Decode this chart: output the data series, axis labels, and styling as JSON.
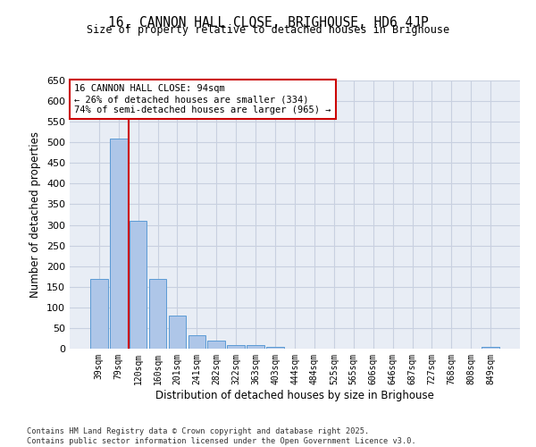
{
  "title_line1": "16, CANNON HALL CLOSE, BRIGHOUSE, HD6 4JP",
  "title_line2": "Size of property relative to detached houses in Brighouse",
  "xlabel": "Distribution of detached houses by size in Brighouse",
  "ylabel": "Number of detached properties",
  "categories": [
    "39sqm",
    "79sqm",
    "120sqm",
    "160sqm",
    "201sqm",
    "241sqm",
    "282sqm",
    "322sqm",
    "363sqm",
    "403sqm",
    "444sqm",
    "484sqm",
    "525sqm",
    "565sqm",
    "606sqm",
    "646sqm",
    "687sqm",
    "727sqm",
    "768sqm",
    "808sqm",
    "849sqm"
  ],
  "values": [
    170,
    510,
    310,
    170,
    80,
    33,
    20,
    8,
    8,
    5,
    0,
    0,
    0,
    0,
    0,
    0,
    0,
    0,
    0,
    0,
    5
  ],
  "bar_color": "#aec6e8",
  "bar_edge_color": "#5b9bd5",
  "vline_color": "#cc0000",
  "vline_x": 1.5,
  "ylim": [
    0,
    650
  ],
  "yticks": [
    0,
    50,
    100,
    150,
    200,
    250,
    300,
    350,
    400,
    450,
    500,
    550,
    600,
    650
  ],
  "plot_bg_color": "#e8edf5",
  "background_color": "#ffffff",
  "grid_color": "#c8d0e0",
  "annotation_box_text": "16 CANNON HALL CLOSE: 94sqm\n← 26% of detached houses are smaller (334)\n74% of semi-detached houses are larger (965) →",
  "annotation_box_color": "#cc0000",
  "footer_line1": "Contains HM Land Registry data © Crown copyright and database right 2025.",
  "footer_line2": "Contains public sector information licensed under the Open Government Licence v3.0."
}
